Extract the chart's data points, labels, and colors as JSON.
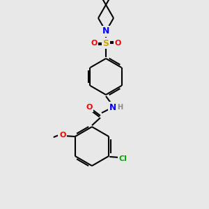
{
  "bg": "#e8e8e8",
  "bond_color": "#000000",
  "atom_colors": {
    "N": "#0000ff",
    "O": "#ff0000",
    "S": "#ccaa00",
    "Cl": "#00aa00",
    "H": "#888888"
  },
  "lw": 1.5,
  "fs": 8
}
